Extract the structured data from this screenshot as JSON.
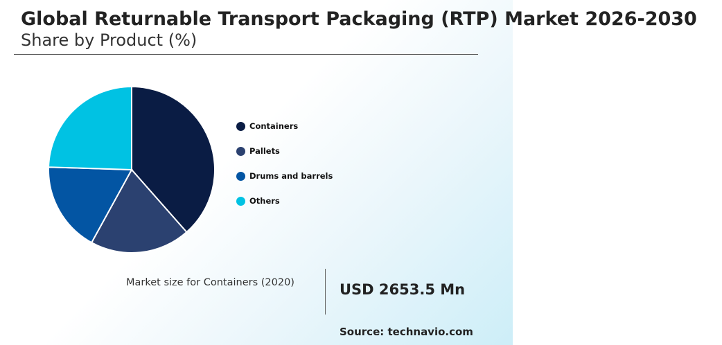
{
  "title": "Global Returnable Transport Packaging (RTP) Market 2026-2030",
  "subtitle": "Share by Product (%)",
  "chart_data": {
    "type": "pie",
    "categories": [
      "Containers",
      "Pallets",
      "Drums and barrels",
      "Others"
    ],
    "values": [
      38.5,
      19.5,
      17.5,
      24.5
    ],
    "colors": [
      "#0a1c44",
      "#2b4170",
      "#0355a3",
      "#00c2e3"
    ],
    "legend_position": "right"
  },
  "market": {
    "label": "Market size for Containers (2020)",
    "value": "USD 2653.5 Mn"
  },
  "source": "Source: technavio.com"
}
